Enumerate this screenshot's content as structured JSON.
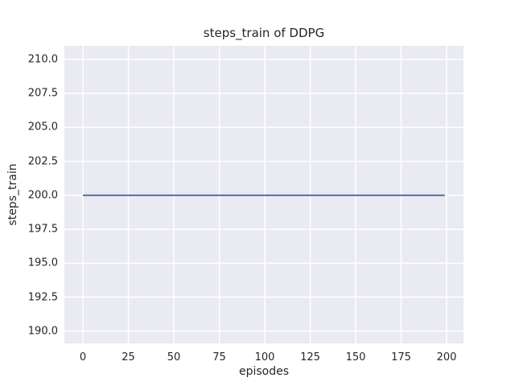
{
  "chart_data": {
    "type": "line",
    "title": "steps_train of DDPG",
    "xlabel": "episodes",
    "ylabel": "steps_train",
    "x_tick_values": [
      0,
      25,
      50,
      75,
      100,
      125,
      150,
      175,
      200
    ],
    "x_tick_labels": [
      "0",
      "25",
      "50",
      "75",
      "100",
      "125",
      "150",
      "175",
      "200"
    ],
    "y_tick_values": [
      190.0,
      192.5,
      195.0,
      197.5,
      200.0,
      202.5,
      205.0,
      207.5,
      210.0
    ],
    "y_tick_labels": [
      "190.0",
      "192.5",
      "195.0",
      "197.5",
      "200.0",
      "202.5",
      "205.0",
      "207.5",
      "210.0"
    ],
    "xlim": [
      -10.2,
      209.3
    ],
    "ylim": [
      189.1,
      211.0
    ],
    "grid": true,
    "legend": "none",
    "series": [
      {
        "name": "steps_train",
        "color": "#4c72b0",
        "description": "constant line: steps_train = 200 for all episodes 0 to 199",
        "x": [
          0,
          199
        ],
        "y": [
          200,
          200
        ]
      }
    ],
    "style": {
      "figure_background": "#ffffff",
      "axes_background": "#eaeaf2",
      "grid_color": "#ffffff",
      "text_color": "#262626"
    }
  }
}
